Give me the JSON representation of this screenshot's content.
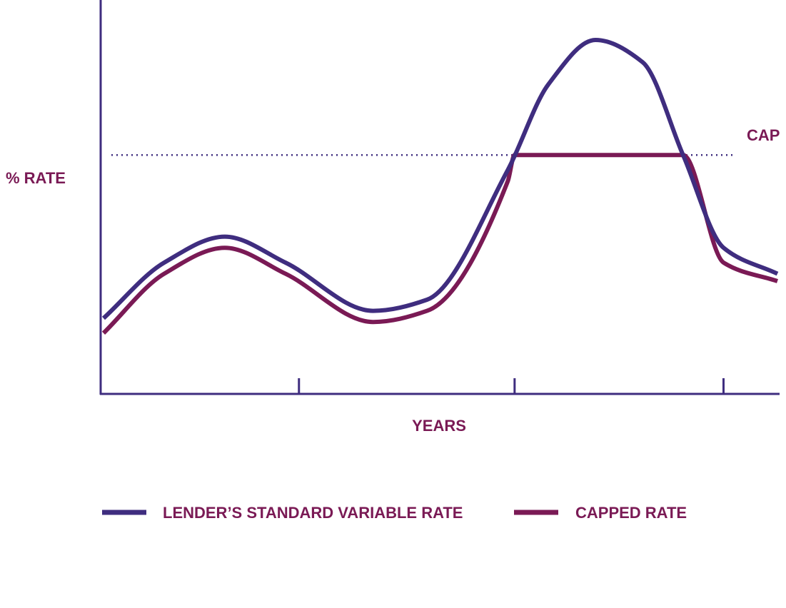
{
  "chart_data": {
    "type": "line",
    "ylabel": "% RATE",
    "xlabel": "YEARS",
    "cap_label": "CAP",
    "cap_value": 64,
    "xlim": [
      0,
      100
    ],
    "ylim": [
      0,
      100
    ],
    "x_ticks": [
      29,
      61,
      92
    ],
    "grid": false,
    "legend_position": "bottom",
    "series": [
      {
        "name": "LENDER’S STANDARD VARIABLE RATE",
        "color": "#3f2d7f",
        "x": [
          0,
          9,
          18,
          27,
          40,
          48,
          60,
          66,
          73,
          80,
          86,
          92,
          100
        ],
        "y": [
          20,
          35,
          42,
          35,
          22,
          25,
          60,
          83,
          95,
          89,
          64,
          39,
          32
        ]
      },
      {
        "name": "CAPPED RATE",
        "color": "#7a1a55",
        "x": [
          0,
          9,
          18,
          27,
          40,
          48,
          60,
          61,
          86,
          92,
          100
        ],
        "y": [
          16,
          32,
          39,
          32,
          19,
          22,
          57,
          64,
          64,
          35,
          30
        ]
      }
    ],
    "cap_line_color": "#3f2d7f",
    "label_color": "#7a1a55",
    "axis_color": "#3f2d7f"
  }
}
